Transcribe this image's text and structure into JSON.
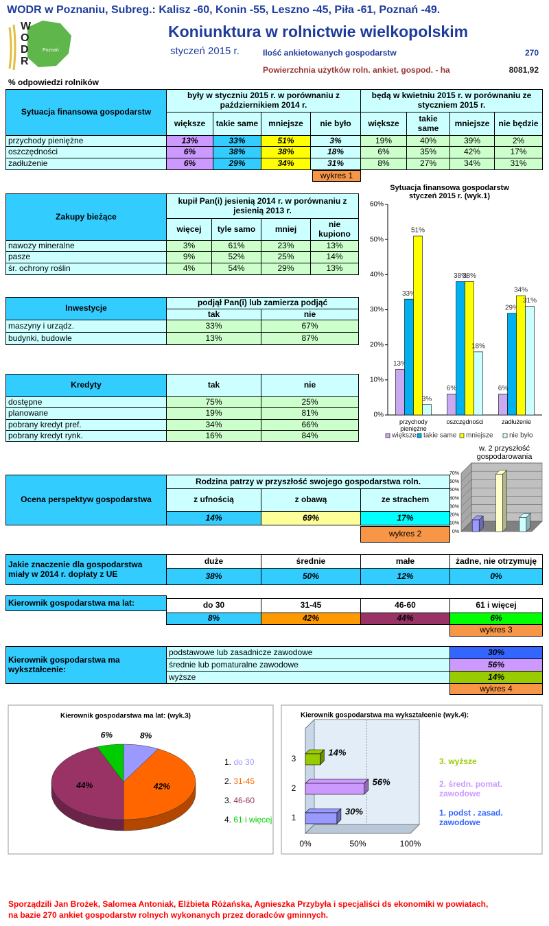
{
  "header": {
    "title": "WODR w Poznaniu, Subreg.: Kalisz -60, Konin -55, Leszno -45, Piła -61, Poznań -49.",
    "logo": [
      "W",
      "O",
      "D",
      "R"
    ],
    "logo_region": "Poznań",
    "subtitle": "Koniunktura w rolnictwie wielkopolskim",
    "date": "styczeń 2015 r.",
    "survey_label": "Ilość ankietowanych gospodarstw",
    "survey_count": "270",
    "area_label": "Powierzchnia użytków roln. ankiet. gospod. - ha",
    "area": "8081,92",
    "note": "% odpowiedzi rolników"
  },
  "finance": {
    "title": "Sytuacja finansowa gospodarstw",
    "group1": "były w styczniu 2015 r. w porównaniu z październikiem 2014 r.",
    "group2": "będą w kwietniu 2015 r. w porównaniu ze styczniem 2015 r.",
    "columns1": [
      "większe",
      "takie same",
      "mniejsze",
      "nie było"
    ],
    "columns2": [
      "większe",
      "takie same",
      "mniejsze",
      "nie będzie"
    ],
    "rows": [
      {
        "label": "przychody pieniężne",
        "values": [
          "13%",
          "33%",
          "51%",
          "3%",
          "19%",
          "40%",
          "39%",
          "2%"
        ]
      },
      {
        "label": "oszczędności",
        "values": [
          "6%",
          "38%",
          "38%",
          "18%",
          "6%",
          "35%",
          "42%",
          "17%"
        ]
      },
      {
        "label": "zadłużenie",
        "values": [
          "6%",
          "29%",
          "34%",
          "31%",
          "8%",
          "27%",
          "34%",
          "31%"
        ]
      }
    ],
    "button": "wykres 1"
  },
  "purchases": {
    "title": "Zakupy bieżące",
    "group": "kupił Pan(i) jesienią 2014 r. w porównaniu z jesienią 2013 r.",
    "columns": [
      "więcej",
      "tyle samo",
      "mniej",
      "nie kupiono"
    ],
    "rows": [
      {
        "label": "nawozy mineralne",
        "values": [
          "3%",
          "61%",
          "23%",
          "13%"
        ]
      },
      {
        "label": "pasze",
        "values": [
          "9%",
          "52%",
          "25%",
          "14%"
        ]
      },
      {
        "label": "śr. ochrony roślin",
        "values": [
          "4%",
          "54%",
          "29%",
          "13%"
        ]
      }
    ]
  },
  "investments": {
    "title": "Inwestycje",
    "group": "podjął Pan(i) lub zamierza podjąć",
    "columns": [
      "tak",
      "nie"
    ],
    "rows": [
      {
        "label": "maszyny i urządz.",
        "values": [
          "33%",
          "67%"
        ]
      },
      {
        "label": "budynki, budowle",
        "values": [
          "13%",
          "87%"
        ]
      }
    ]
  },
  "credits": {
    "title": "Kredyty",
    "columns": [
      "tak",
      "nie"
    ],
    "rows": [
      {
        "label": "dostępne",
        "values": [
          "75%",
          "25%"
        ]
      },
      {
        "label": "planowane",
        "values": [
          "19%",
          "81%"
        ]
      },
      {
        "label": "pobrany kredyt pref.",
        "values": [
          "34%",
          "66%"
        ]
      },
      {
        "label": "pobrany kredyt rynk.",
        "values": [
          "16%",
          "84%"
        ]
      }
    ]
  },
  "outlook": {
    "title": "Ocena perspektyw gospodarstwa",
    "group": "Rodzina patrzy w przyszłość swojego gospodarstwa roln.",
    "columns": [
      "z ufnością",
      "z obawą",
      "ze strachem"
    ],
    "values": [
      "14%",
      "69%",
      "17%"
    ],
    "button": "wykres 2"
  },
  "eu_payments": {
    "title": "Jakie znaczenie dla gospodarstwa miały w 2014 r. dopłaty z UE",
    "columns": [
      "duże",
      "średnie",
      "małe",
      "żadne, nie otrzymuję"
    ],
    "values": [
      "38%",
      "50%",
      "12%",
      "0%"
    ]
  },
  "manager_age": {
    "title": "Kierownik gospodarstwa ma lat:",
    "columns": [
      "do 30",
      "31-45",
      "46-60",
      "61 i więcej"
    ],
    "values": [
      "8%",
      "42%",
      "44%",
      "6%"
    ],
    "button": "wykres 3"
  },
  "manager_education": {
    "title": "Kierownik gospodarstwa ma wykształcenie:",
    "rows": [
      {
        "label": "podstawowe lub zasadnicze zawodowe",
        "value": "30%"
      },
      {
        "label": "średnie lub pomaturalne zawodowe",
        "value": "56%"
      },
      {
        "label": "wyższe",
        "value": "14%"
      }
    ],
    "button": "wykres 4"
  },
  "footer": [
    "Sporządzili Jan Brożek, Salomea Antoniak, Elżbieta Różańska, Agnieszka Przybyła i specjaliści ds ekonomiki w powiatach,",
    "na bazie 270 ankiet gospodarstw rolnych wykonanych przez doradców gminnych."
  ],
  "chart_data": [
    {
      "type": "bar",
      "title": "Sytuacja finansowa gospodarstw styczeń 2015 r. (wyk.1)",
      "categories": [
        "przychody pieniężne",
        "oszczędności",
        "zadłużenie"
      ],
      "series": [
        {
          "name": "większe",
          "color": "#c9a9f0",
          "values": [
            13,
            6,
            6
          ],
          "value_labels": [
            "13%",
            "6%",
            "6%"
          ]
        },
        {
          "name": "takie  same",
          "color": "#00b0f0",
          "values": [
            33,
            38,
            29
          ],
          "value_labels": [
            "33%",
            "38%",
            "29%"
          ]
        },
        {
          "name": "mniejsze",
          "color": "#ffff00",
          "values": [
            51,
            38,
            34
          ],
          "value_labels": [
            "51%",
            "38%",
            "34%"
          ]
        },
        {
          "name": "nie było",
          "color": "#ccffff",
          "values": [
            3,
            18,
            31
          ],
          "value_labels": [
            "3%",
            "18%",
            "31%"
          ]
        }
      ],
      "ylim": [
        0,
        60
      ],
      "yticks": [
        {
          "value": 0,
          "label": "0%"
        },
        {
          "value": 10,
          "label": "10%"
        },
        {
          "value": 20,
          "label": "20%"
        },
        {
          "value": 30,
          "label": "30%"
        },
        {
          "value": 40,
          "label": "40%"
        },
        {
          "value": 50,
          "label": "50%"
        },
        {
          "value": 60,
          "label": "60%"
        }
      ],
      "legend": "bottom"
    },
    {
      "type": "bar3d",
      "title": "w. 2 przyszłość gospodarowania",
      "values": [
        14,
        69,
        17
      ],
      "colors": [
        "#9999ff",
        "#ffffcc",
        "#ccffff"
      ],
      "ylim": [
        0,
        70
      ],
      "yticks": [
        {
          "value": 0,
          "label": "0%"
        },
        {
          "value": 10,
          "label": "10%"
        },
        {
          "value": 20,
          "label": "20%"
        },
        {
          "value": 30,
          "label": "30%"
        },
        {
          "value": 40,
          "label": "40%"
        },
        {
          "value": 50,
          "label": "50%"
        },
        {
          "value": 60,
          "label": "60%"
        },
        {
          "value": 70,
          "label": "70%"
        }
      ]
    },
    {
      "type": "pie",
      "title": "Kierownik gospodarstwa ma lat: (wyk.3)",
      "categories": [
        "do 30",
        "31-45",
        "46-60",
        "61 i więcej"
      ],
      "values": [
        8,
        42,
        44,
        6
      ],
      "value_labels": [
        "8%",
        "42%",
        "44%",
        "6%"
      ],
      "colors": [
        "#9999ff",
        "#ff6600",
        "#993366",
        "#00cc00"
      ],
      "legend_numbers": [
        "1.",
        "2.",
        "3.",
        "4."
      ],
      "legend": "right"
    },
    {
      "type": "bar",
      "orientation": "horizontal",
      "title": "Kierownik gospodarstwa ma wykształcenie (wyk.4):",
      "categories": [
        "1",
        "2",
        "3"
      ],
      "values": [
        30,
        56,
        14
      ],
      "value_labels": [
        "30%",
        "56%",
        "14%"
      ],
      "colors": [
        "#9999ff",
        "#cc99ff",
        "#99cc00"
      ],
      "xlim": [
        0,
        100
      ],
      "xticks": [
        {
          "value": 0,
          "label": "0%"
        },
        {
          "value": 50,
          "label": "50%"
        },
        {
          "value": 100,
          "label": "100%"
        }
      ],
      "legend": [
        {
          "label": "3. wyższe",
          "color": "#99cc00"
        },
        {
          "label": "2. średn. pomat. zawodowe",
          "color": "#cc99ff"
        },
        {
          "label": "1. podst . zasad. zawodowe",
          "color": "#3366ff"
        }
      ]
    }
  ]
}
